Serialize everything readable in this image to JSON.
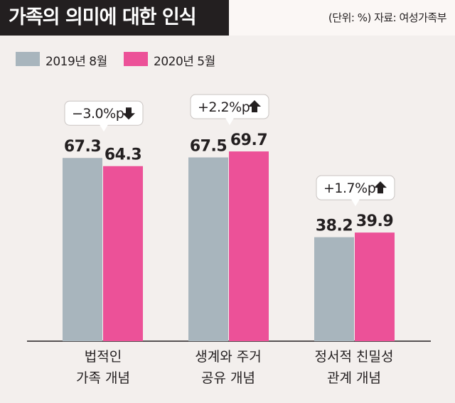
{
  "header": {
    "title": "가족의 의미에 대한 인식",
    "source": "(단위: %) 자료: 여성가족부"
  },
  "colors": {
    "series_2019": "#a8b5bd",
    "series_2020": "#ec5198",
    "title_bg": "#231f20",
    "background": "#f3efed"
  },
  "chart_data": {
    "type": "bar",
    "categories": [
      [
        "법적인",
        "가족 개념"
      ],
      [
        "생계와 주거",
        "공유 개념"
      ],
      [
        "정서적 친밀성",
        "관계 개념"
      ]
    ],
    "series": [
      {
        "name": "2019년 8월",
        "values": [
          67.3,
          67.5,
          38.2
        ]
      },
      {
        "name": "2020년 5월",
        "values": [
          64.3,
          69.7,
          39.9
        ]
      }
    ],
    "value_labels": [
      [
        "67.3",
        "67.5",
        "38.2"
      ],
      [
        "64.3",
        "69.7",
        "39.9"
      ]
    ],
    "annotations": [
      {
        "text": "−3.0%p",
        "direction": "down"
      },
      {
        "text": "+2.2%p",
        "direction": "up"
      },
      {
        "text": "+1.7%p",
        "direction": "up"
      }
    ],
    "ylim": [
      0,
      100
    ],
    "grid": false,
    "legend_position": "top-left",
    "unit": "%"
  }
}
